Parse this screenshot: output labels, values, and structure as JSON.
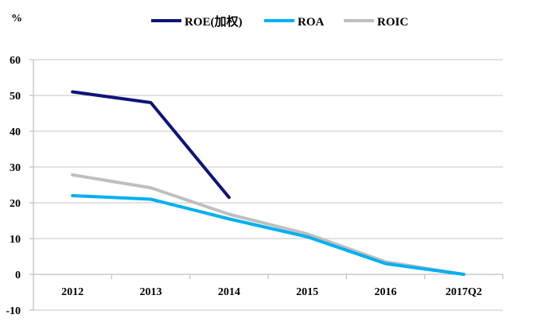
{
  "chart_data": {
    "type": "line",
    "title": "",
    "ylabel": "%",
    "xlabel": "",
    "ylim": [
      -10,
      60
    ],
    "yticks": [
      -10,
      0,
      10,
      20,
      30,
      40,
      50,
      60
    ],
    "grid": true,
    "legend_position": "top",
    "categories": [
      "2012",
      "2013",
      "2014",
      "2015",
      "2016",
      "2017Q2"
    ],
    "series": [
      {
        "name": "ROE(加权)",
        "color": "#10137a",
        "values": [
          51,
          48,
          21.5,
          null,
          null,
          null
        ]
      },
      {
        "name": "ROA",
        "color": "#00b0f0",
        "values": [
          22,
          21,
          15.5,
          10.5,
          3,
          0
        ]
      },
      {
        "name": "ROIC",
        "color": "#bfbfbf",
        "values": [
          27.8,
          24.2,
          16.8,
          11.3,
          3.5,
          0
        ]
      }
    ]
  }
}
